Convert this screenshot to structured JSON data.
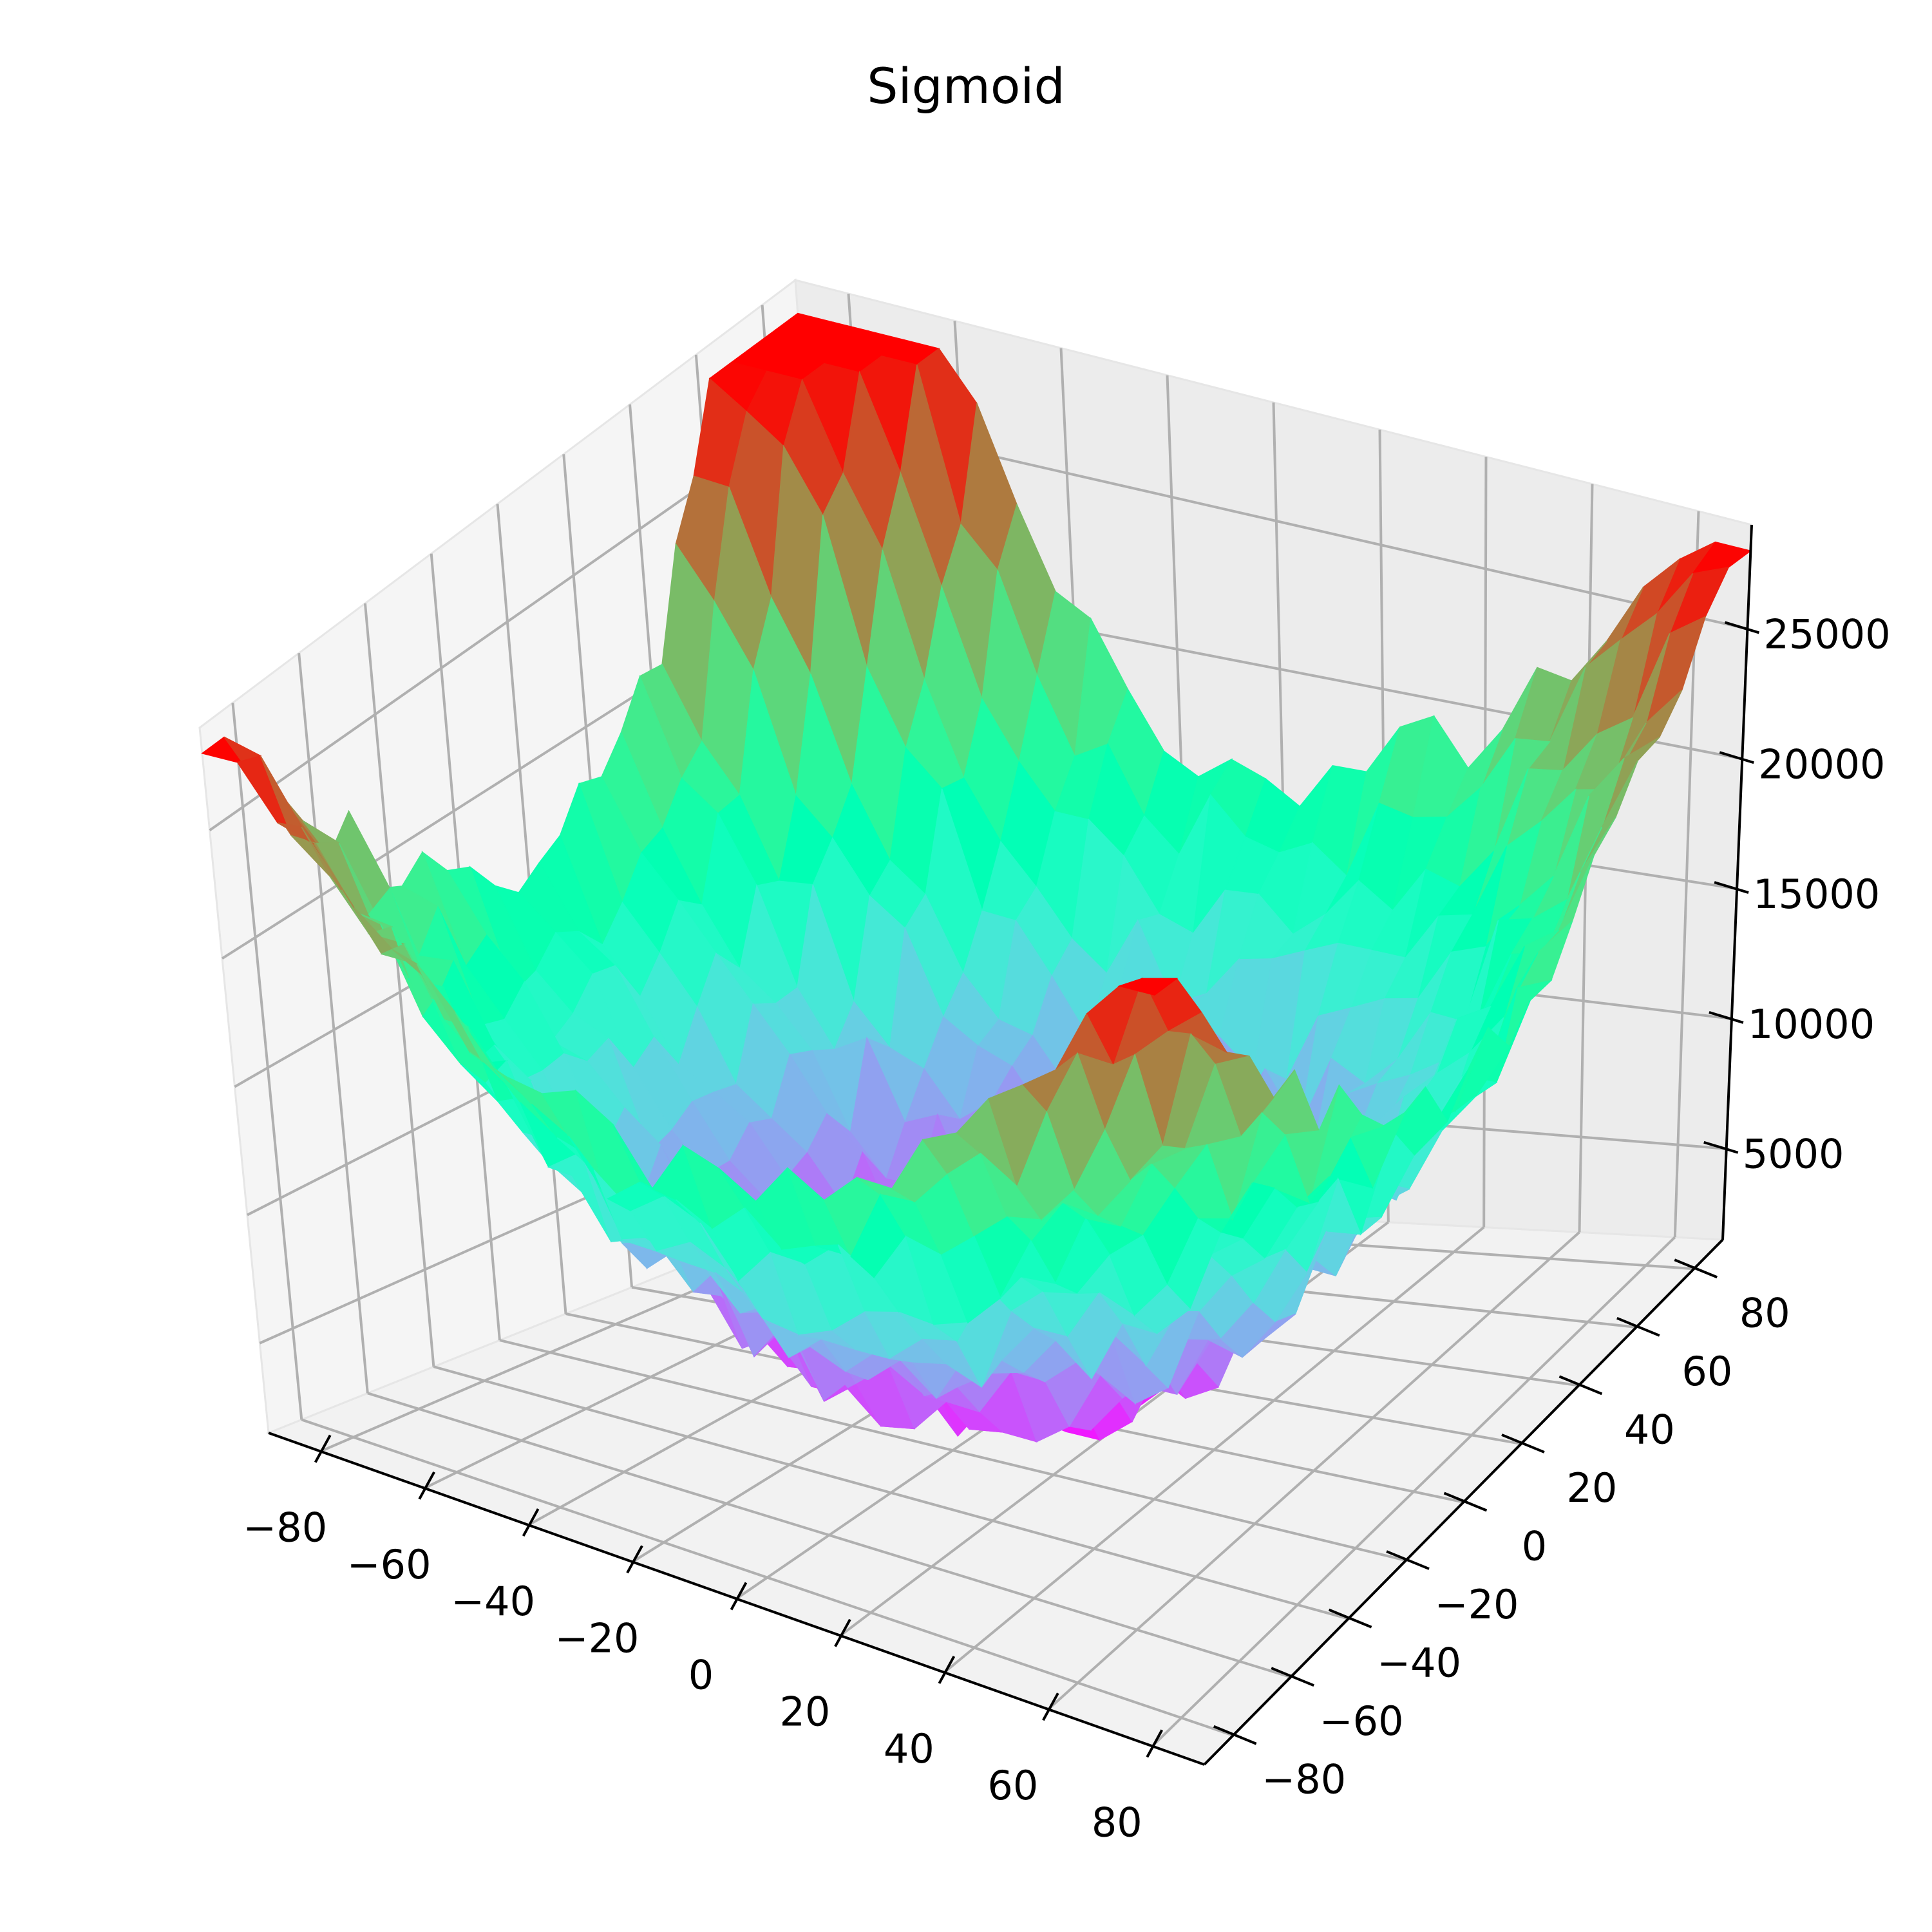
{
  "chart_data": {
    "type": "surface-3d",
    "title": "Sigmoid",
    "xlabel": "",
    "ylabel": "",
    "zlabel": "",
    "colormap": "rainbow",
    "grid": true,
    "x_ticks": [
      -80,
      -60,
      -40,
      -20,
      0,
      20,
      40,
      60,
      80
    ],
    "y_ticks": [
      -80,
      -60,
      -40,
      -20,
      0,
      20,
      40,
      60,
      80
    ],
    "z_ticks": [
      5000,
      10000,
      15000,
      20000,
      25000
    ],
    "x_range": [
      -90,
      90
    ],
    "y_range": [
      -90,
      90
    ],
    "z_range": [
      1500,
      29000
    ],
    "grid_size": 28,
    "z_surface_model": "z = 1.8*(x^2 + y^2) + noise; observed min ≈ 2000 near origin, peak ≈ 28000 at x≈-80,y≈80",
    "z_min_observed": 2000,
    "z_max_observed": 28000
  }
}
